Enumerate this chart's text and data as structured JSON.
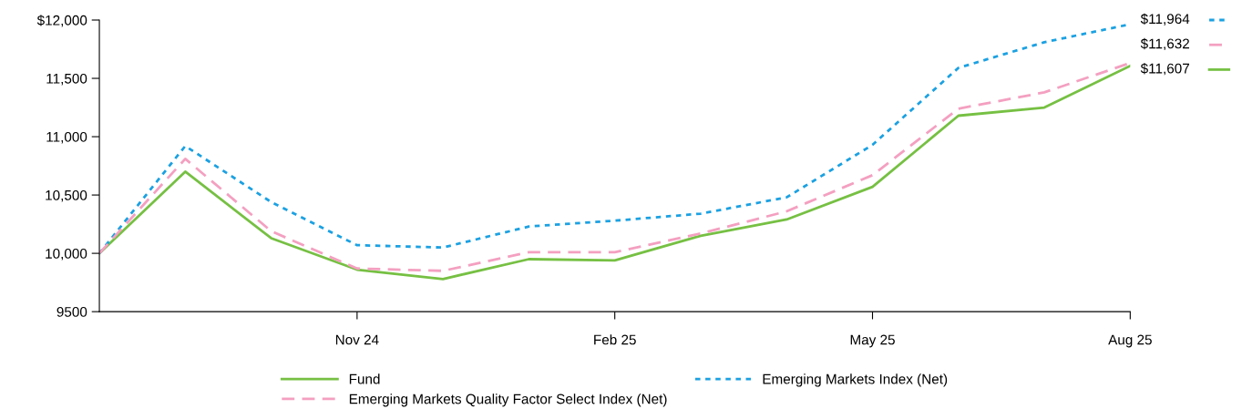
{
  "chart_data": {
    "type": "line",
    "categories": [
      null,
      null,
      null,
      "Nov 24",
      null,
      null,
      "Feb 25",
      null,
      null,
      "May 25",
      null,
      null,
      "Aug 25"
    ],
    "series": [
      {
        "name": "Fund",
        "color": "#76c043",
        "line_style": "solid",
        "values": [
          10000,
          10700,
          10130,
          9860,
          9780,
          9950,
          9940,
          10150,
          10290,
          10570,
          11180,
          11250,
          11607
        ],
        "value_labels": [
          null,
          null,
          null,
          null,
          null,
          null,
          null,
          null,
          null,
          null,
          null,
          null,
          "$11,607"
        ]
      },
      {
        "name": "Emerging Markets Index (Net)",
        "color": "#1ba1e2",
        "line_style": "dotted",
        "values": [
          10000,
          10920,
          10440,
          10070,
          10050,
          10230,
          10280,
          10340,
          10480,
          10930,
          11590,
          11810,
          11964
        ],
        "value_labels": [
          null,
          null,
          null,
          null,
          null,
          null,
          null,
          null,
          null,
          null,
          null,
          null,
          "$11,964"
        ]
      },
      {
        "name": "Emerging Markets Quality Factor Select Index (Net)",
        "color": "#f4a0c0",
        "line_style": "dashed",
        "values": [
          10000,
          10810,
          10190,
          9870,
          9850,
          10010,
          10010,
          10170,
          10360,
          10670,
          11240,
          11380,
          11632
        ],
        "value_labels": [
          null,
          null,
          null,
          null,
          null,
          null,
          null,
          null,
          null,
          null,
          null,
          null,
          "$11,632"
        ]
      }
    ],
    "ylim": [
      9500,
      12000
    ],
    "yticks": [
      9500,
      {
        "value": 10000,
        "label": "10,000"
      },
      {
        "value": 10500,
        "label": "10,500"
      },
      {
        "value": 11000,
        "label": "11,000"
      },
      {
        "value": 11500,
        "label": "11,500"
      },
      {
        "value": 12000,
        "label": "$12,000"
      }
    ],
    "grid": false,
    "legend": "bottom",
    "marker": "none"
  }
}
